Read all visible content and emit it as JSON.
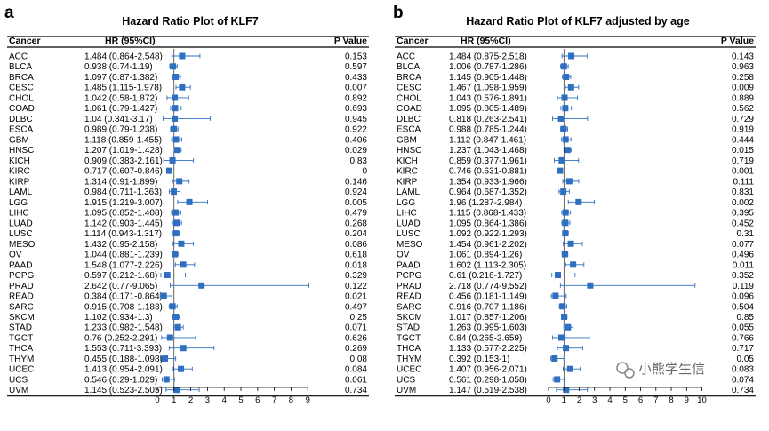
{
  "watermark": "小熊学生信",
  "chart_data": [
    {
      "panel": "a",
      "type": "forest",
      "title": "Hazard Ratio Plot of KLF7",
      "columns": [
        "Cancer",
        "HR (95%CI)",
        "P Value"
      ],
      "xticks": [
        0,
        1,
        2,
        3,
        4,
        5,
        6,
        7,
        8,
        9
      ],
      "xlim": [
        0,
        9.2
      ],
      "reference_line": 1,
      "color": "#2e6fbf",
      "rows": [
        {
          "cancer": "ACC",
          "hr_text": "1.484 (0.864-2.548)",
          "hr": 1.484,
          "lo": 0.864,
          "hi": 2.548,
          "p": "0.153"
        },
        {
          "cancer": "BLCA",
          "hr_text": "0.938 (0.74-1.19)",
          "hr": 0.938,
          "lo": 0.74,
          "hi": 1.19,
          "p": "0.597"
        },
        {
          "cancer": "BRCA",
          "hr_text": "1.097 (0.87-1.382)",
          "hr": 1.097,
          "lo": 0.87,
          "hi": 1.382,
          "p": "0.433"
        },
        {
          "cancer": "CESC",
          "hr_text": "1.485 (1.115-1.978)",
          "hr": 1.485,
          "lo": 1.115,
          "hi": 1.978,
          "p": "0.007"
        },
        {
          "cancer": "CHOL",
          "hr_text": "1.042 (0.58-1.872)",
          "hr": 1.042,
          "lo": 0.58,
          "hi": 1.872,
          "p": "0.892"
        },
        {
          "cancer": "COAD",
          "hr_text": "1.061 (0.79-1.427)",
          "hr": 1.061,
          "lo": 0.79,
          "hi": 1.427,
          "p": "0.693"
        },
        {
          "cancer": "DLBC",
          "hr_text": "1.04 (0.341-3.17)",
          "hr": 1.04,
          "lo": 0.341,
          "hi": 3.17,
          "p": "0.945"
        },
        {
          "cancer": "ESCA",
          "hr_text": "0.989 (0.79-1.238)",
          "hr": 0.989,
          "lo": 0.79,
          "hi": 1.238,
          "p": "0.922"
        },
        {
          "cancer": "GBM",
          "hr_text": "1.118 (0.859-1.455)",
          "hr": 1.118,
          "lo": 0.859,
          "hi": 1.455,
          "p": "0.406"
        },
        {
          "cancer": "HNSC",
          "hr_text": "1.207 (1.019-1.428)",
          "hr": 1.207,
          "lo": 1.019,
          "hi": 1.428,
          "p": "0.029"
        },
        {
          "cancer": "KICH",
          "hr_text": "0.909 (0.383-2.161)",
          "hr": 0.909,
          "lo": 0.383,
          "hi": 2.161,
          "p": "0.83"
        },
        {
          "cancer": "KIRC",
          "hr_text": "0.717 (0.607-0.846)",
          "hr": 0.717,
          "lo": 0.607,
          "hi": 0.846,
          "p": "0"
        },
        {
          "cancer": "KIRP",
          "hr_text": "1.314 (0.91-1.899)",
          "hr": 1.314,
          "lo": 0.91,
          "hi": 1.899,
          "p": "0.146"
        },
        {
          "cancer": "LAML",
          "hr_text": "0.984 (0.711-1.363)",
          "hr": 0.984,
          "lo": 0.711,
          "hi": 1.363,
          "p": "0.924"
        },
        {
          "cancer": "LGG",
          "hr_text": "1.915 (1.219-3.007)",
          "hr": 1.915,
          "lo": 1.219,
          "hi": 3.007,
          "p": "0.005"
        },
        {
          "cancer": "LIHC",
          "hr_text": "1.095 (0.852-1.408)",
          "hr": 1.095,
          "lo": 0.852,
          "hi": 1.408,
          "p": "0.479"
        },
        {
          "cancer": "LUAD",
          "hr_text": "1.142 (0.903-1.445)",
          "hr": 1.142,
          "lo": 0.903,
          "hi": 1.445,
          "p": "0.268"
        },
        {
          "cancer": "LUSC",
          "hr_text": "1.114 (0.943-1.317)",
          "hr": 1.114,
          "lo": 0.943,
          "hi": 1.317,
          "p": "0.204"
        },
        {
          "cancer": "MESO",
          "hr_text": "1.432 (0.95-2.158)",
          "hr": 1.432,
          "lo": 0.95,
          "hi": 2.158,
          "p": "0.086"
        },
        {
          "cancer": "OV",
          "hr_text": "1.044 (0.881-1.239)",
          "hr": 1.044,
          "lo": 0.881,
          "hi": 1.239,
          "p": "0.618"
        },
        {
          "cancer": "PAAD",
          "hr_text": "1.548 (1.077-2.226)",
          "hr": 1.548,
          "lo": 1.077,
          "hi": 2.226,
          "p": "0.018"
        },
        {
          "cancer": "PCPG",
          "hr_text": "0.597 (0.212-1.68)",
          "hr": 0.597,
          "lo": 0.212,
          "hi": 1.68,
          "p": "0.329"
        },
        {
          "cancer": "PRAD",
          "hr_text": "2.642 (0.77-9.065)",
          "hr": 2.642,
          "lo": 0.77,
          "hi": 9.065,
          "p": "0.122"
        },
        {
          "cancer": "READ",
          "hr_text": "0.384 (0.171-0.864)",
          "hr": 0.384,
          "lo": 0.171,
          "hi": 0.864,
          "p": "0.021"
        },
        {
          "cancer": "SARC",
          "hr_text": "0.915 (0.708-1.183)",
          "hr": 0.915,
          "lo": 0.708,
          "hi": 1.183,
          "p": "0.497"
        },
        {
          "cancer": "SKCM",
          "hr_text": "1.102 (0.934-1.3)",
          "hr": 1.102,
          "lo": 0.934,
          "hi": 1.3,
          "p": "0.25"
        },
        {
          "cancer": "STAD",
          "hr_text": "1.233 (0.982-1.548)",
          "hr": 1.233,
          "lo": 0.982,
          "hi": 1.548,
          "p": "0.071"
        },
        {
          "cancer": "TGCT",
          "hr_text": "0.76 (0.252-2.291)",
          "hr": 0.76,
          "lo": 0.252,
          "hi": 2.291,
          "p": "0.626"
        },
        {
          "cancer": "THCA",
          "hr_text": "1.553 (0.711-3.393)",
          "hr": 1.553,
          "lo": 0.711,
          "hi": 3.393,
          "p": "0.269"
        },
        {
          "cancer": "THYM",
          "hr_text": "0.455 (0.188-1.098)",
          "hr": 0.455,
          "lo": 0.188,
          "hi": 1.098,
          "p": "0.08"
        },
        {
          "cancer": "UCEC",
          "hr_text": "1.413 (0.954-2.091)",
          "hr": 1.413,
          "lo": 0.954,
          "hi": 2.091,
          "p": "0.084"
        },
        {
          "cancer": "UCS",
          "hr_text": "0.546 (0.29-1.029)",
          "hr": 0.546,
          "lo": 0.29,
          "hi": 1.029,
          "p": "0.061"
        },
        {
          "cancer": "UVM",
          "hr_text": "1.145 (0.523-2.505)",
          "hr": 1.145,
          "lo": 0.523,
          "hi": 2.505,
          "p": "0.734"
        }
      ]
    },
    {
      "panel": "b",
      "type": "forest",
      "title": "Hazard Ratio Plot of KLF7 adjusted by age",
      "columns": [
        "Cancer",
        "HR (95%CI)",
        "P Value"
      ],
      "xticks": [
        0,
        1,
        2,
        3,
        4,
        5,
        6,
        7,
        8,
        9,
        10
      ],
      "xlim": [
        0,
        10.2
      ],
      "reference_line": 1,
      "color": "#2e6fbf",
      "rows": [
        {
          "cancer": "ACC",
          "hr_text": "1.484 (0.875-2.518)",
          "hr": 1.484,
          "lo": 0.875,
          "hi": 2.518,
          "p": "0.143"
        },
        {
          "cancer": "BLCA",
          "hr_text": "1.006 (0.787-1.286)",
          "hr": 1.006,
          "lo": 0.787,
          "hi": 1.286,
          "p": "0.963"
        },
        {
          "cancer": "BRCA",
          "hr_text": "1.145 (0.905-1.448)",
          "hr": 1.145,
          "lo": 0.905,
          "hi": 1.448,
          "p": "0.258"
        },
        {
          "cancer": "CESC",
          "hr_text": "1.467 (1.098-1.959)",
          "hr": 1.467,
          "lo": 1.098,
          "hi": 1.959,
          "p": "0.009"
        },
        {
          "cancer": "CHOL",
          "hr_text": "1.043 (0.576-1.891)",
          "hr": 1.043,
          "lo": 0.576,
          "hi": 1.891,
          "p": "0.889"
        },
        {
          "cancer": "COAD",
          "hr_text": "1.095 (0.805-1.489)",
          "hr": 1.095,
          "lo": 0.805,
          "hi": 1.489,
          "p": "0.562"
        },
        {
          "cancer": "DLBC",
          "hr_text": "0.818 (0.263-2.541)",
          "hr": 0.818,
          "lo": 0.263,
          "hi": 2.541,
          "p": "0.729"
        },
        {
          "cancer": "ESCA",
          "hr_text": "0.988 (0.785-1.244)",
          "hr": 0.988,
          "lo": 0.785,
          "hi": 1.244,
          "p": "0.919"
        },
        {
          "cancer": "GBM",
          "hr_text": "1.112 (0.847-1.461)",
          "hr": 1.112,
          "lo": 0.847,
          "hi": 1.461,
          "p": "0.444"
        },
        {
          "cancer": "HNSC",
          "hr_text": "1.237 (1.043-1.468)",
          "hr": 1.237,
          "lo": 1.043,
          "hi": 1.468,
          "p": "0.015"
        },
        {
          "cancer": "KICH",
          "hr_text": "0.859 (0.377-1.961)",
          "hr": 0.859,
          "lo": 0.377,
          "hi": 1.961,
          "p": "0.719"
        },
        {
          "cancer": "KIRC",
          "hr_text": "0.746 (0.631-0.881)",
          "hr": 0.746,
          "lo": 0.631,
          "hi": 0.881,
          "p": "0.001"
        },
        {
          "cancer": "KIRP",
          "hr_text": "1.354 (0.933-1.966)",
          "hr": 1.354,
          "lo": 0.933,
          "hi": 1.966,
          "p": "0.111"
        },
        {
          "cancer": "LAML",
          "hr_text": "0.964 (0.687-1.352)",
          "hr": 0.964,
          "lo": 0.687,
          "hi": 1.352,
          "p": "0.831"
        },
        {
          "cancer": "LGG",
          "hr_text": "1.96 (1.287-2.984)",
          "hr": 1.96,
          "lo": 1.287,
          "hi": 2.984,
          "p": "0.002"
        },
        {
          "cancer": "LIHC",
          "hr_text": "1.115 (0.868-1.433)",
          "hr": 1.115,
          "lo": 0.868,
          "hi": 1.433,
          "p": "0.395"
        },
        {
          "cancer": "LUAD",
          "hr_text": "1.095 (0.864-1.386)",
          "hr": 1.095,
          "lo": 0.864,
          "hi": 1.386,
          "p": "0.452"
        },
        {
          "cancer": "LUSC",
          "hr_text": "1.092 (0.922-1.293)",
          "hr": 1.092,
          "lo": 0.922,
          "hi": 1.293,
          "p": "0.31"
        },
        {
          "cancer": "MESO",
          "hr_text": "1.454 (0.961-2.202)",
          "hr": 1.454,
          "lo": 0.961,
          "hi": 2.202,
          "p": "0.077"
        },
        {
          "cancer": "OV",
          "hr_text": "1.061 (0.894-1.26)",
          "hr": 1.061,
          "lo": 0.894,
          "hi": 1.26,
          "p": "0.496"
        },
        {
          "cancer": "PAAD",
          "hr_text": "1.602 (1.113-2.305)",
          "hr": 1.602,
          "lo": 1.113,
          "hi": 2.305,
          "p": "0.011"
        },
        {
          "cancer": "PCPG",
          "hr_text": "0.61 (0.216-1.727)",
          "hr": 0.61,
          "lo": 0.216,
          "hi": 1.727,
          "p": "0.352"
        },
        {
          "cancer": "PRAD",
          "hr_text": "2.718 (0.774-9.552)",
          "hr": 2.718,
          "lo": 0.774,
          "hi": 9.552,
          "p": "0.119"
        },
        {
          "cancer": "READ",
          "hr_text": "0.456 (0.181-1.149)",
          "hr": 0.456,
          "lo": 0.181,
          "hi": 1.149,
          "p": "0.096"
        },
        {
          "cancer": "SARC",
          "hr_text": "0.916 (0.707-1.186)",
          "hr": 0.916,
          "lo": 0.707,
          "hi": 1.186,
          "p": "0.504"
        },
        {
          "cancer": "SKCM",
          "hr_text": "1.017 (0.857-1.206)",
          "hr": 1.017,
          "lo": 0.857,
          "hi": 1.206,
          "p": "0.85"
        },
        {
          "cancer": "STAD",
          "hr_text": "1.263 (0.995-1.603)",
          "hr": 1.263,
          "lo": 0.995,
          "hi": 1.603,
          "p": "0.055"
        },
        {
          "cancer": "TGCT",
          "hr_text": "0.84 (0.265-2.659)",
          "hr": 0.84,
          "lo": 0.265,
          "hi": 2.659,
          "p": "0.766"
        },
        {
          "cancer": "THCA",
          "hr_text": "1.133 (0.577-2.225)",
          "hr": 1.133,
          "lo": 0.577,
          "hi": 2.225,
          "p": "0.717"
        },
        {
          "cancer": "THYM",
          "hr_text": "0.392 (0.153-1)",
          "hr": 0.392,
          "lo": 0.153,
          "hi": 1.0,
          "p": "0.05"
        },
        {
          "cancer": "UCEC",
          "hr_text": "1.407 (0.956-2.071)",
          "hr": 1.407,
          "lo": 0.956,
          "hi": 2.071,
          "p": "0.083"
        },
        {
          "cancer": "UCS",
          "hr_text": "0.561 (0.298-1.058)",
          "hr": 0.561,
          "lo": 0.298,
          "hi": 1.058,
          "p": "0.074"
        },
        {
          "cancer": "UVM",
          "hr_text": "1.147 (0.519-2.538)",
          "hr": 1.147,
          "lo": 0.519,
          "hi": 2.538,
          "p": "0.734"
        }
      ]
    }
  ]
}
